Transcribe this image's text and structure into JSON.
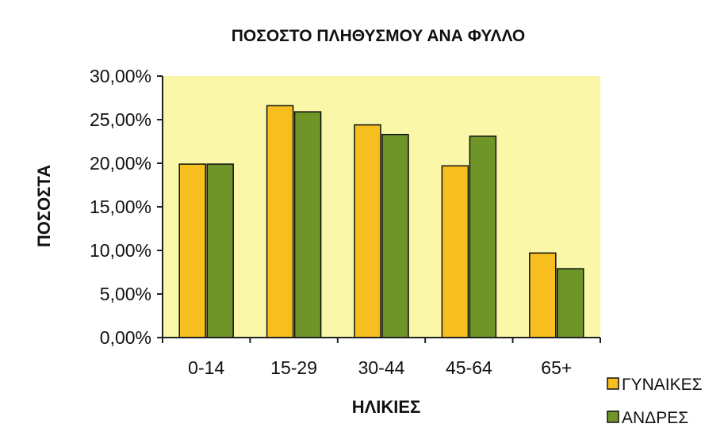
{
  "chart_data": {
    "type": "bar",
    "title": "ΠΟΣΟΣΤΟ ΠΛΗΘΥΣΜΟΥ ΑΝΑ ΦΥΛΛΟ",
    "xlabel": "ΗΛΙΚΙΕΣ",
    "ylabel": "ΠΟΣΟΣΤΑ",
    "categories": [
      "0-14",
      "15-29",
      "30-44",
      "45-64",
      "65+"
    ],
    "series": [
      {
        "name": "ΓΥΝΑΙΚΕΣ",
        "values": [
          19.9,
          26.6,
          24.4,
          19.7,
          9.7
        ]
      },
      {
        "name": "ΑΝΔΡΕΣ",
        "values": [
          19.9,
          25.9,
          23.3,
          23.1,
          7.9
        ]
      }
    ],
    "ylim": [
      0,
      30
    ],
    "yticks": [
      0,
      5,
      10,
      15,
      20,
      25,
      30
    ],
    "ytick_labels": [
      "0,00%",
      "5,00%",
      "10,00%",
      "15,00%",
      "20,00%",
      "25,00%",
      "30,00%"
    ],
    "grid": false,
    "legend_position": "bottom-right",
    "colors": {
      "plot_background": "#faf7a8",
      "series": [
        "#f6be1e",
        "#6f9528"
      ],
      "bar_stroke": "#111111",
      "axis": "#222222"
    }
  }
}
